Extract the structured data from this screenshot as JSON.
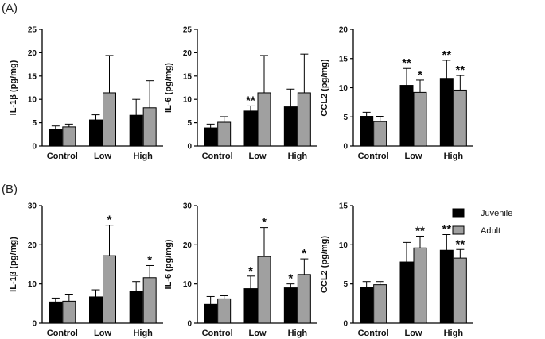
{
  "panel_labels": [
    "(A)",
    "(B)"
  ],
  "legend": [
    {
      "name": "Juvenile",
      "color": "#000000"
    },
    {
      "name": "Adult",
      "color": "#a0a0a0"
    }
  ],
  "chart_data": [
    {
      "type": "bar",
      "panel": "(A)",
      "ylabel": "IL-1β (pg/mg)",
      "ylim": [
        0,
        25
      ],
      "yticks": [
        0,
        5,
        10,
        15,
        20,
        25
      ],
      "categories": [
        "Control",
        "Low",
        "High"
      ],
      "series": [
        {
          "name": "Juvenile",
          "values": [
            3.6,
            5.6,
            6.6
          ],
          "errors": [
            0.7,
            1.1,
            3.4
          ],
          "stars": [
            "",
            "",
            ""
          ]
        },
        {
          "name": "Adult",
          "values": [
            4.1,
            11.4,
            8.2
          ],
          "errors": [
            0.6,
            8.0,
            5.8
          ],
          "stars": [
            "",
            "",
            ""
          ]
        }
      ]
    },
    {
      "type": "bar",
      "panel": "(A)",
      "ylabel": "IL-6 (pg/mg)",
      "ylim": [
        0,
        25
      ],
      "yticks": [
        0,
        5,
        10,
        15,
        20,
        25
      ],
      "categories": [
        "Control",
        "Low",
        "High"
      ],
      "series": [
        {
          "name": "Juvenile",
          "values": [
            3.9,
            7.5,
            8.4
          ],
          "errors": [
            0.8,
            1.1,
            3.8
          ],
          "stars": [
            "",
            "**",
            ""
          ]
        },
        {
          "name": "Adult",
          "values": [
            5.1,
            11.4,
            11.4
          ],
          "errors": [
            1.2,
            8.0,
            8.3
          ],
          "stars": [
            "",
            "",
            ""
          ]
        }
      ]
    },
    {
      "type": "bar",
      "panel": "(A)",
      "ylabel": "CCL2 (pg/mg)",
      "ylim": [
        0,
        20
      ],
      "yticks": [
        0,
        5,
        10,
        15,
        20
      ],
      "categories": [
        "Control",
        "Low",
        "High"
      ],
      "series": [
        {
          "name": "Juvenile",
          "values": [
            5.1,
            10.4,
            11.6
          ],
          "errors": [
            0.7,
            2.9,
            3.1
          ],
          "stars": [
            "",
            "**",
            "**"
          ]
        },
        {
          "name": "Adult",
          "values": [
            4.2,
            9.2,
            9.6
          ],
          "errors": [
            0.9,
            2.1,
            2.5
          ],
          "stars": [
            "",
            "*",
            "**"
          ]
        }
      ]
    },
    {
      "type": "bar",
      "panel": "(B)",
      "ylabel": "IL-1β (pg/mg)",
      "ylim": [
        0,
        30
      ],
      "yticks": [
        0,
        10,
        20,
        30
      ],
      "categories": [
        "Control",
        "Low",
        "High"
      ],
      "series": [
        {
          "name": "Juvenile",
          "values": [
            5.4,
            6.7,
            8.2
          ],
          "errors": [
            1.0,
            1.8,
            2.4
          ],
          "stars": [
            "",
            "",
            ""
          ]
        },
        {
          "name": "Adult",
          "values": [
            5.6,
            17.2,
            11.6
          ],
          "errors": [
            1.8,
            7.8,
            3.1
          ],
          "stars": [
            "",
            "*",
            "*"
          ]
        }
      ]
    },
    {
      "type": "bar",
      "panel": "(B)",
      "ylabel": "IL-6 (pg/mg)",
      "ylim": [
        0,
        30
      ],
      "yticks": [
        0,
        10,
        20,
        30
      ],
      "categories": [
        "Control",
        "Low",
        "High"
      ],
      "series": [
        {
          "name": "Juvenile",
          "values": [
            4.8,
            8.8,
            9.0
          ],
          "errors": [
            2.0,
            3.2,
            1.0
          ],
          "stars": [
            "",
            "*",
            "*"
          ]
        },
        {
          "name": "Adult",
          "values": [
            6.2,
            17.0,
            12.4
          ],
          "errors": [
            0.8,
            7.4,
            4.0
          ],
          "stars": [
            "",
            "*",
            "*"
          ]
        }
      ]
    },
    {
      "type": "bar",
      "panel": "(B)",
      "ylabel": "CCL2 (pg/mg)",
      "ylim": [
        0,
        15
      ],
      "yticks": [
        0,
        5,
        10,
        15
      ],
      "categories": [
        "Control",
        "Low",
        "High"
      ],
      "series": [
        {
          "name": "Juvenile",
          "values": [
            4.6,
            7.8,
            9.3
          ],
          "errors": [
            0.7,
            2.5,
            2.0
          ],
          "stars": [
            "",
            "",
            "**"
          ]
        },
        {
          "name": "Adult",
          "values": [
            4.9,
            9.6,
            8.3
          ],
          "errors": [
            0.4,
            1.5,
            1.1
          ],
          "stars": [
            "",
            "**",
            "**"
          ]
        }
      ]
    }
  ]
}
